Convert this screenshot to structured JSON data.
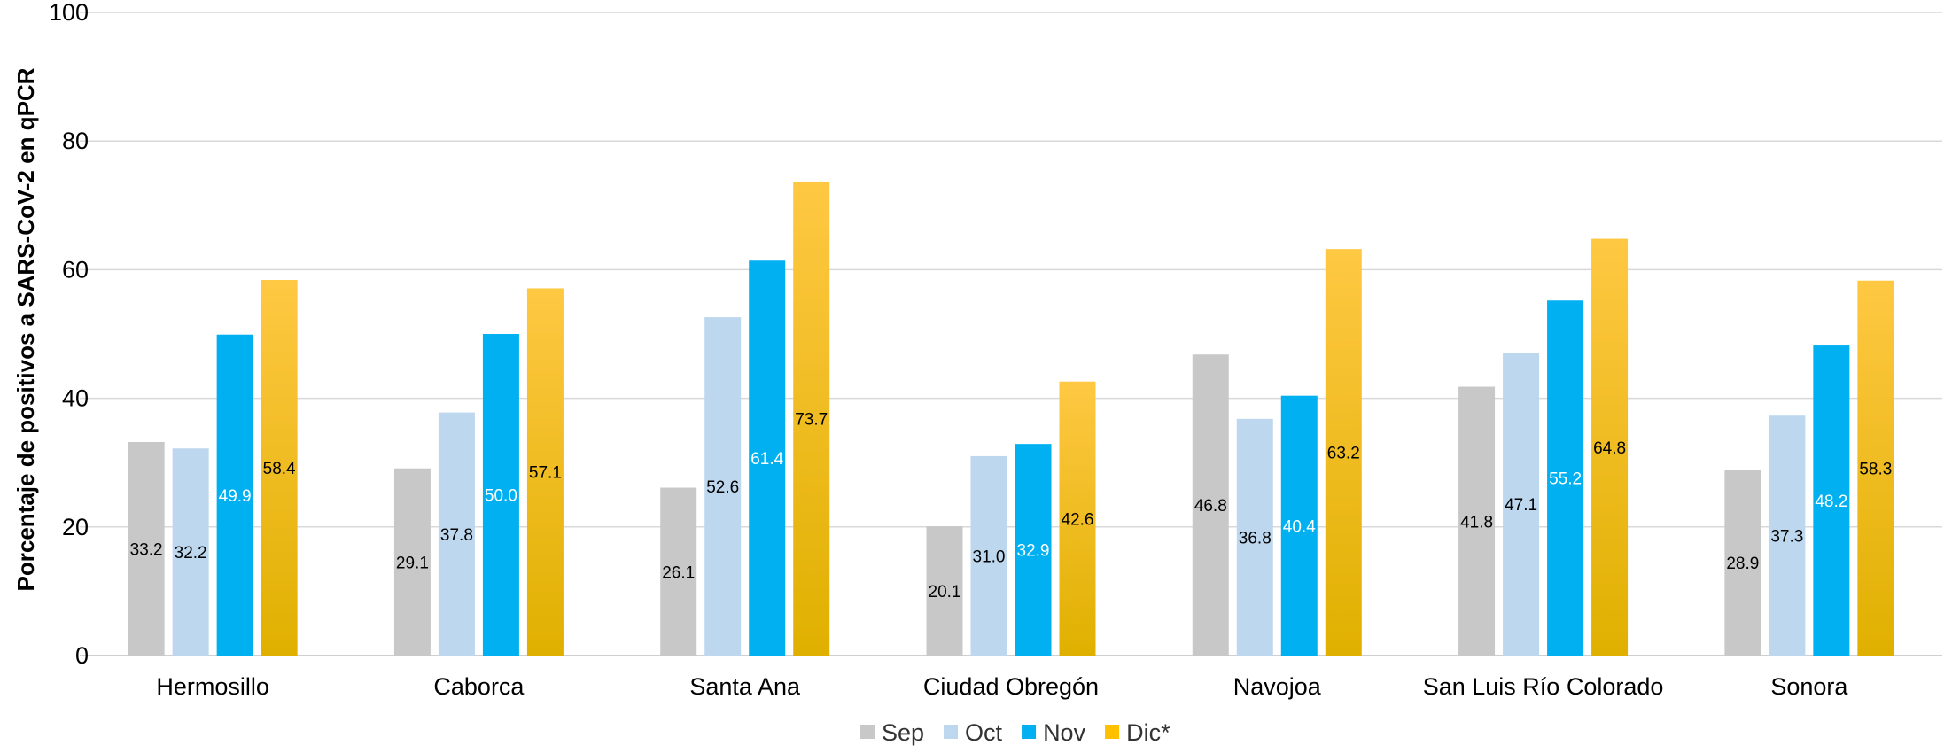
{
  "chart_data": {
    "type": "bar",
    "ylabel": "Porcentaje de positivos a SARS-CoV-2 en qPCR",
    "xlabel": "",
    "ylim": [
      0,
      100
    ],
    "yticks": [
      0,
      20,
      40,
      60,
      80,
      100
    ],
    "grid": true,
    "legend_position": "bottom",
    "categories": [
      "Hermosillo",
      "Caborca",
      "Santa Ana",
      "Ciudad Obregón",
      "Navojoa",
      "San Luis Río Colorado",
      "Sonora"
    ],
    "series": [
      {
        "name": "Sep",
        "color": "#c8c8c8",
        "label_color": "#000000",
        "values": [
          33.2,
          29.1,
          26.1,
          20.1,
          46.8,
          41.8,
          28.9
        ],
        "labels": [
          "33.2",
          "29.1",
          "26.1",
          "20.1",
          "46.8",
          "41.8",
          "28.9"
        ]
      },
      {
        "name": "Oct",
        "color": "#bdd7ee",
        "label_color": "#000000",
        "values": [
          32.2,
          37.8,
          52.6,
          31.0,
          36.8,
          47.1,
          37.3
        ],
        "labels": [
          "32.2",
          "37.8",
          "52.6",
          "31.0",
          "36.8",
          "47.1",
          "37.3"
        ]
      },
      {
        "name": "Nov",
        "color": "#00b0f0",
        "label_color": "#ffffff",
        "values": [
          49.9,
          50.0,
          61.4,
          32.9,
          40.4,
          55.2,
          48.2
        ],
        "labels": [
          "49.9",
          "50.0",
          "61.4",
          "32.9",
          "40.4",
          "55.2",
          "48.2"
        ]
      },
      {
        "name": "Dic*",
        "color": "#ffc000",
        "gradient_top": "#ffc843",
        "gradient_bottom": "#e0b000",
        "label_color": "#000000",
        "values": [
          58.4,
          57.1,
          73.7,
          42.6,
          63.2,
          64.8,
          58.3
        ],
        "labels": [
          "58.4",
          "57.1",
          "73.7",
          "42.6",
          "63.2",
          "64.8",
          "58.3"
        ]
      }
    ]
  }
}
